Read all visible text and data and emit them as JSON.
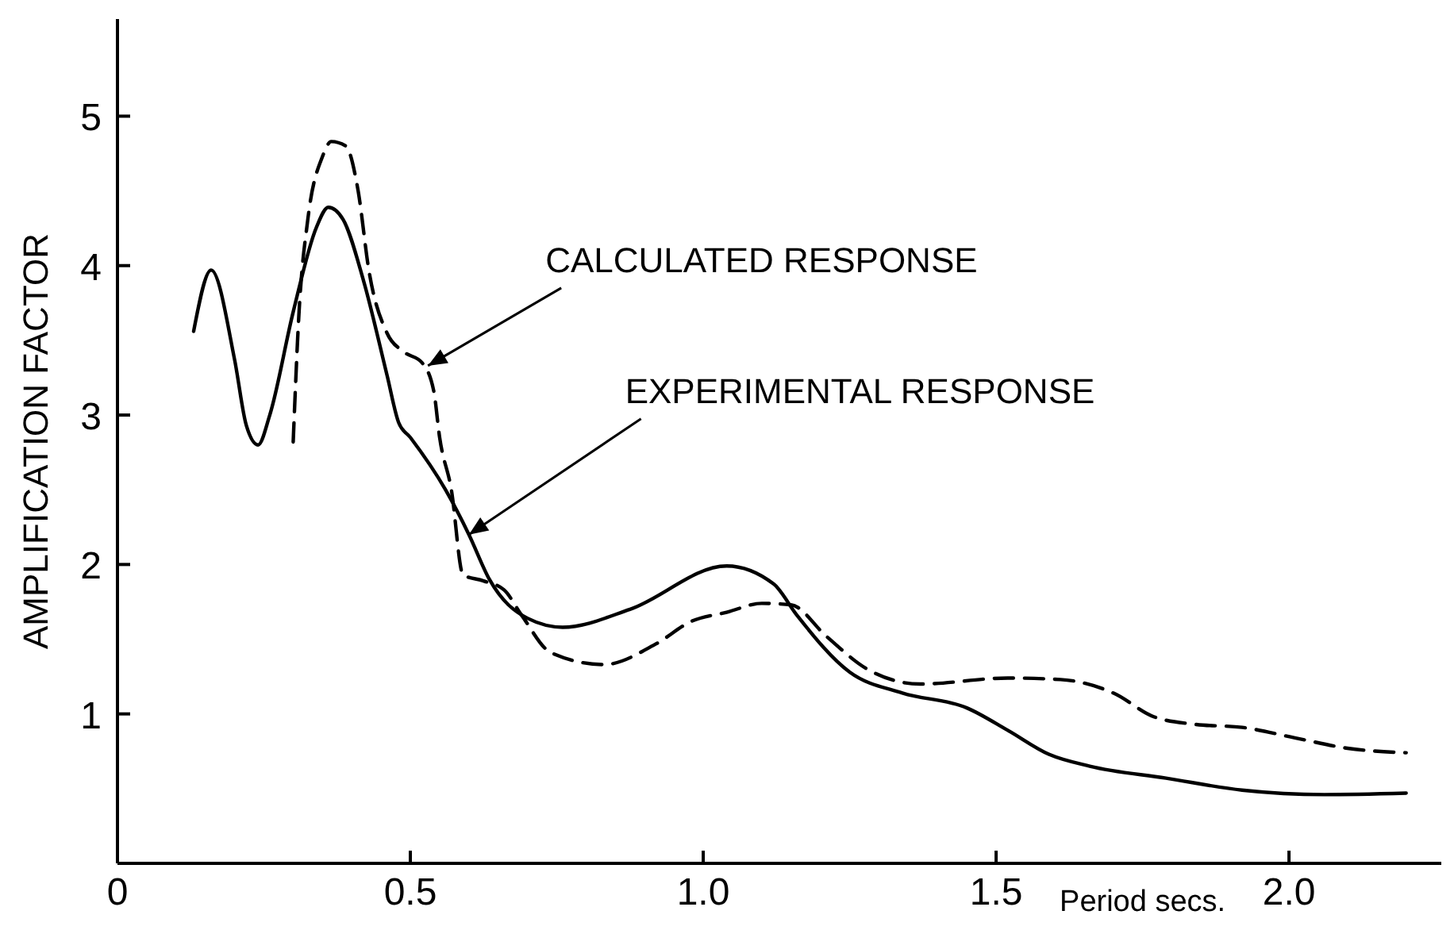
{
  "chart_data": {
    "type": "line",
    "xlabel": "Period secs.",
    "ylabel": "AMPLIFICATION FACTOR",
    "xlim": [
      0,
      2.26
    ],
    "ylim": [
      0,
      5.65
    ],
    "xticks": [
      0,
      0.5,
      {
        "value": 1,
        "label": "1.0"
      },
      1.5,
      {
        "value": 2,
        "label": "2.0"
      }
    ],
    "yticks": [
      1,
      2,
      3,
      4,
      5
    ],
    "grid": false,
    "marker": "none",
    "series": [
      {
        "color": "#000000",
        "line_style": "solid",
        "x": [
          0.13,
          0.16,
          0.2,
          0.22,
          0.24,
          0.26,
          0.3,
          0.34,
          0.36,
          0.385,
          0.42,
          0.46,
          0.48,
          0.5,
          0.56,
          0.6,
          0.635,
          0.7,
          0.76,
          0.875,
          1.04,
          1.12,
          1.16,
          1.25,
          1.34,
          1.45,
          1.52,
          1.59,
          1.66,
          1.79,
          1.92,
          2.06,
          2.2
        ],
        "values": [
          3.56,
          3.97,
          3.37,
          2.93,
          2.8,
          3.0,
          3.69,
          4.26,
          4.39,
          4.31,
          3.9,
          3.27,
          2.95,
          2.85,
          2.5,
          2.2,
          1.9,
          1.64,
          1.58,
          1.7,
          1.99,
          1.87,
          1.66,
          1.28,
          1.14,
          1.04,
          0.89,
          0.73,
          0.65,
          0.57,
          0.49,
          0.46,
          0.47
        ]
      },
      {
        "color": "#000000",
        "line_style": "dashed",
        "x": [
          0.3,
          0.31,
          0.325,
          0.35,
          0.365,
          0.39,
          0.41,
          0.43,
          0.46,
          0.49,
          0.52,
          0.54,
          0.55,
          0.57,
          0.59,
          0.625,
          0.66,
          0.69,
          0.74,
          0.83,
          0.92,
          0.98,
          1.04,
          1.1,
          1.15,
          1.21,
          1.28,
          1.37,
          1.52,
          1.61,
          1.7,
          1.77,
          1.84,
          1.92,
          2.01,
          2.1,
          2.2
        ],
        "values": [
          2.82,
          3.69,
          4.31,
          4.73,
          4.83,
          4.8,
          4.52,
          3.95,
          3.55,
          3.42,
          3.35,
          3.16,
          2.85,
          2.5,
          1.93,
          1.89,
          1.83,
          1.66,
          1.41,
          1.33,
          1.47,
          1.62,
          1.68,
          1.74,
          1.73,
          1.52,
          1.3,
          1.2,
          1.24,
          1.23,
          1.14,
          0.98,
          0.93,
          0.91,
          0.84,
          0.77,
          0.74
        ]
      }
    ],
    "annotations": [
      {
        "text": "CALCULATED RESPONSE",
        "x": 0.53,
        "y": 3.33
      },
      {
        "text": "EXPERIMENTAL RESPONSE",
        "x": 0.6,
        "y": 2.2
      }
    ]
  }
}
